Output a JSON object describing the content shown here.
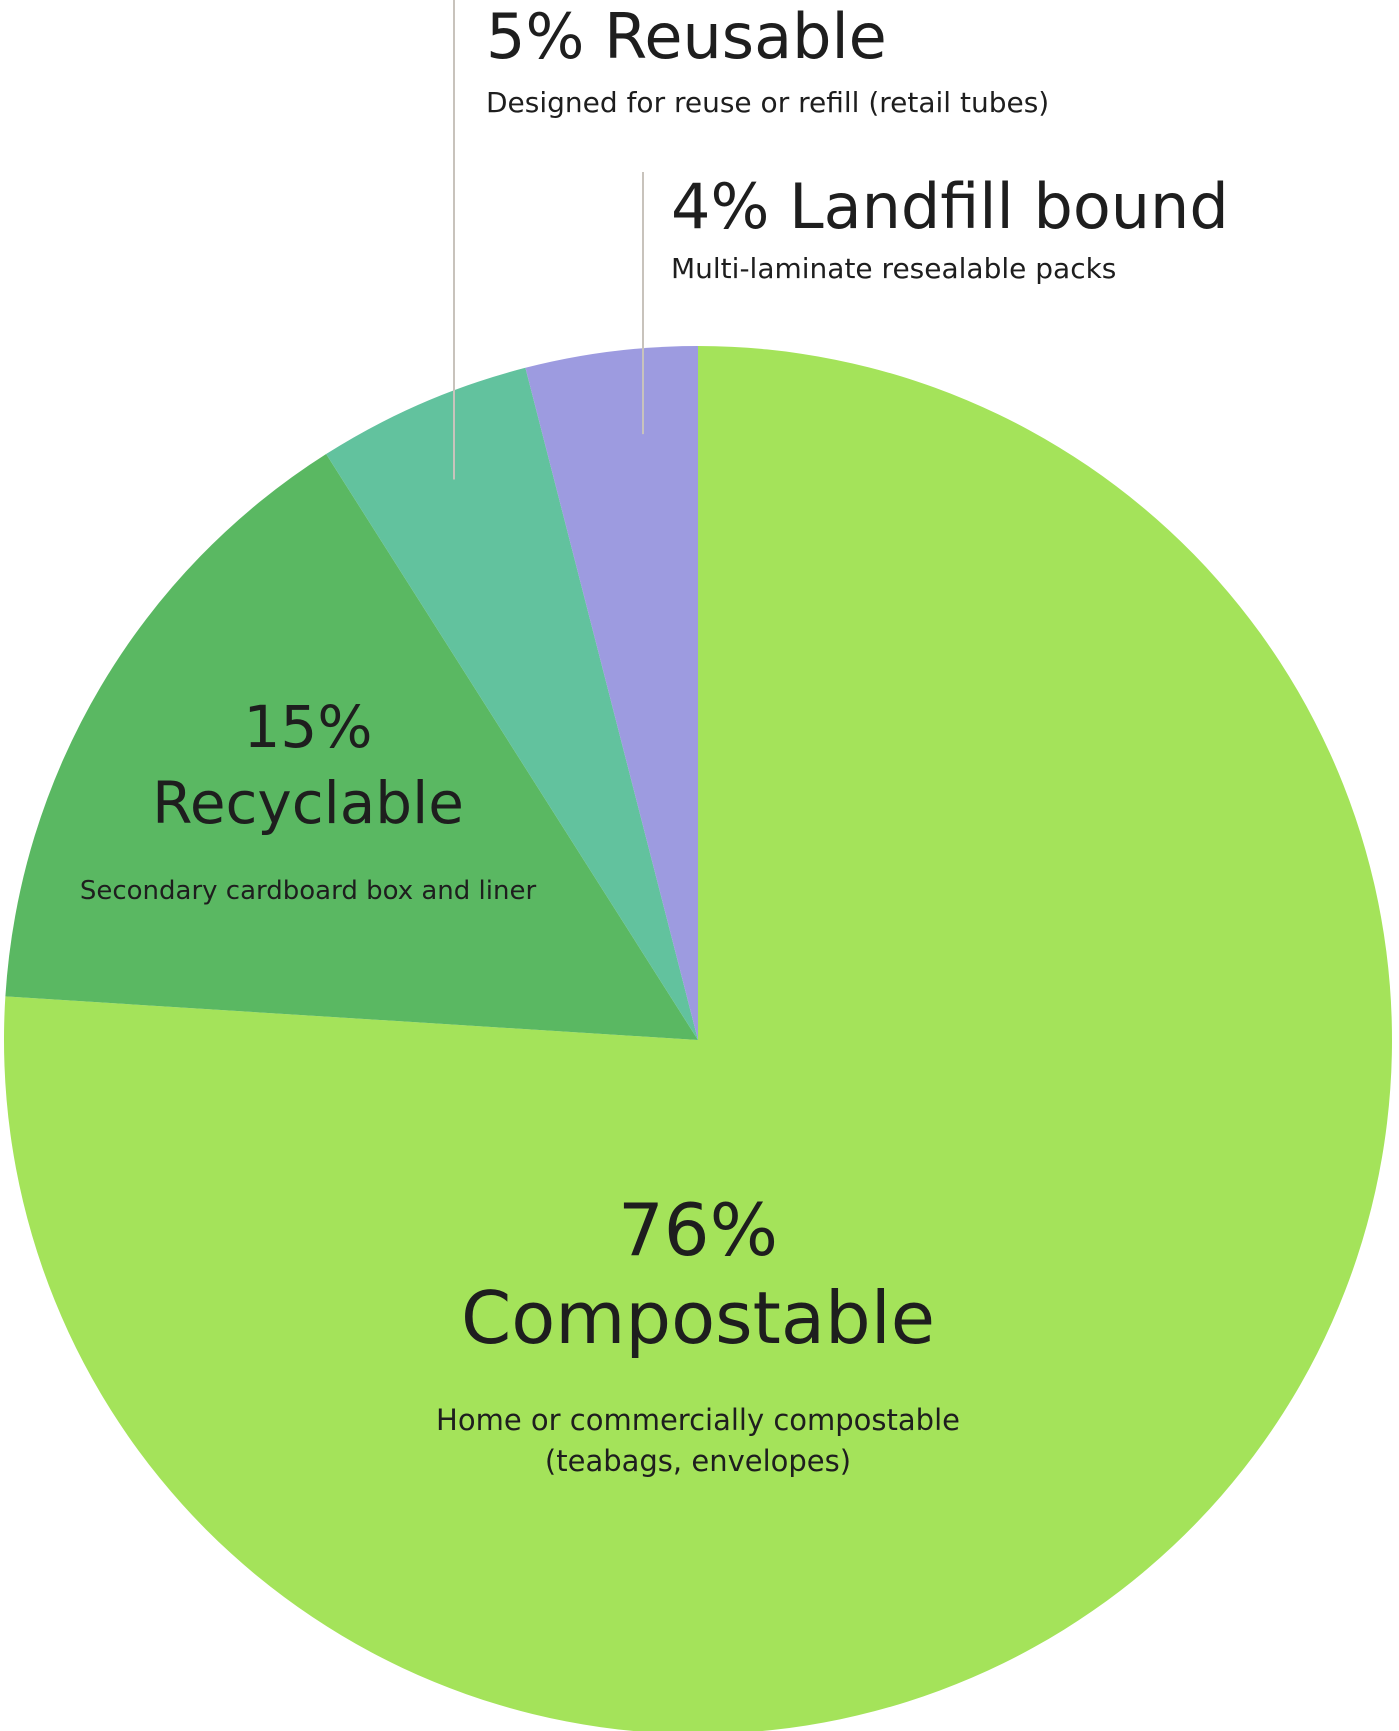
{
  "chart_data": {
    "type": "pie",
    "title": "",
    "slices": [
      {
        "percent": 76,
        "label": "76%",
        "name": "Compostable",
        "description": [
          "Home or commercially compostable",
          "(teabags, envelopes)"
        ],
        "color": "#a4e35a"
      },
      {
        "percent": 15,
        "label": "15%",
        "name": "Recyclable",
        "description": [
          "Secondary cardboard box and liner"
        ],
        "color": "#5ab862"
      },
      {
        "percent": 5,
        "label": "5% Reusable",
        "name": "Reusable",
        "description": [
          "Designed for reuse or refill (retail tubes)"
        ],
        "color": "#62c29e"
      },
      {
        "percent": 4,
        "label": "4% Landfill bound",
        "name": "Landfill bound",
        "description": [
          "Multi-laminate resealable packs"
        ],
        "color": "#9d9be0"
      }
    ],
    "leader_line_color": "#c8c3bc"
  }
}
